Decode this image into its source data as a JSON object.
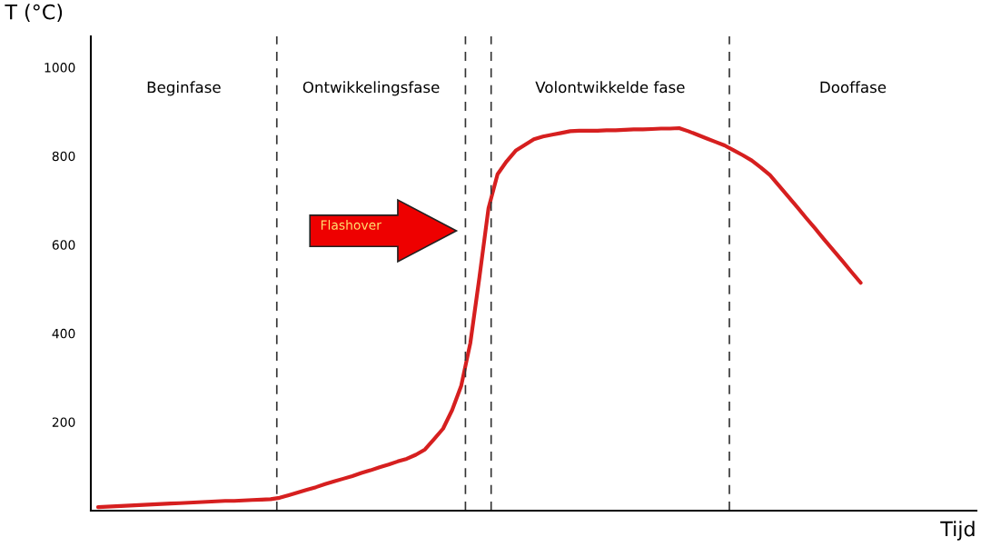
{
  "chart_data": {
    "type": "line",
    "xlabel": "Tijd",
    "ylabel": "T (°C)",
    "categories": [
      null,
      null,
      null,
      null,
      null,
      null,
      null,
      null,
      null,
      null,
      null,
      null,
      null,
      null,
      null,
      null,
      null,
      null,
      null,
      null,
      null,
      null,
      null,
      null,
      null,
      null,
      null,
      null,
      null,
      null,
      null,
      null,
      null,
      null,
      null,
      null,
      null,
      null,
      null,
      null,
      null,
      null,
      null,
      null,
      null,
      null,
      null,
      null,
      null,
      null,
      null,
      null,
      null,
      null,
      null,
      null,
      null,
      null,
      null,
      null,
      null,
      null,
      null,
      null,
      null,
      null,
      null,
      null,
      null,
      null,
      null,
      null,
      null,
      null,
      null,
      null,
      null,
      null,
      null,
      null,
      null,
      null,
      null,
      null,
      null
    ],
    "series": [
      {
        "color": "#d61f1f",
        "values": [
          8,
          9,
          10,
          11,
          12,
          13,
          14,
          15,
          16,
          17,
          18,
          19,
          20,
          21,
          22,
          22,
          23,
          24,
          25,
          26,
          29,
          35,
          41,
          47,
          53,
          60,
          66,
          72,
          78,
          85,
          91,
          98,
          104,
          111,
          117,
          126,
          138,
          161,
          185,
          227,
          282,
          378,
          526,
          682,
          759,
          788,
          812,
          825,
          838,
          844,
          848,
          852,
          856,
          857,
          857,
          857,
          858,
          858,
          859,
          860,
          860,
          861,
          862,
          862,
          863,
          856,
          848,
          840,
          832,
          824,
          813,
          802,
          790,
          774,
          757,
          733,
          709,
          685,
          660,
          636,
          611,
          587,
          563,
          538,
          514
        ]
      }
    ],
    "ylim": [
      0,
      1070
    ],
    "yticks": [
      200,
      400,
      600,
      800,
      1000
    ],
    "tick_labels": "y",
    "marker": "none",
    "line_style": "solid",
    "annotations": [
      "Beginfase",
      "Ontwikkelingsfase",
      "Volontwikkelde fase",
      "Dooffase",
      "Flashover"
    ]
  }
}
